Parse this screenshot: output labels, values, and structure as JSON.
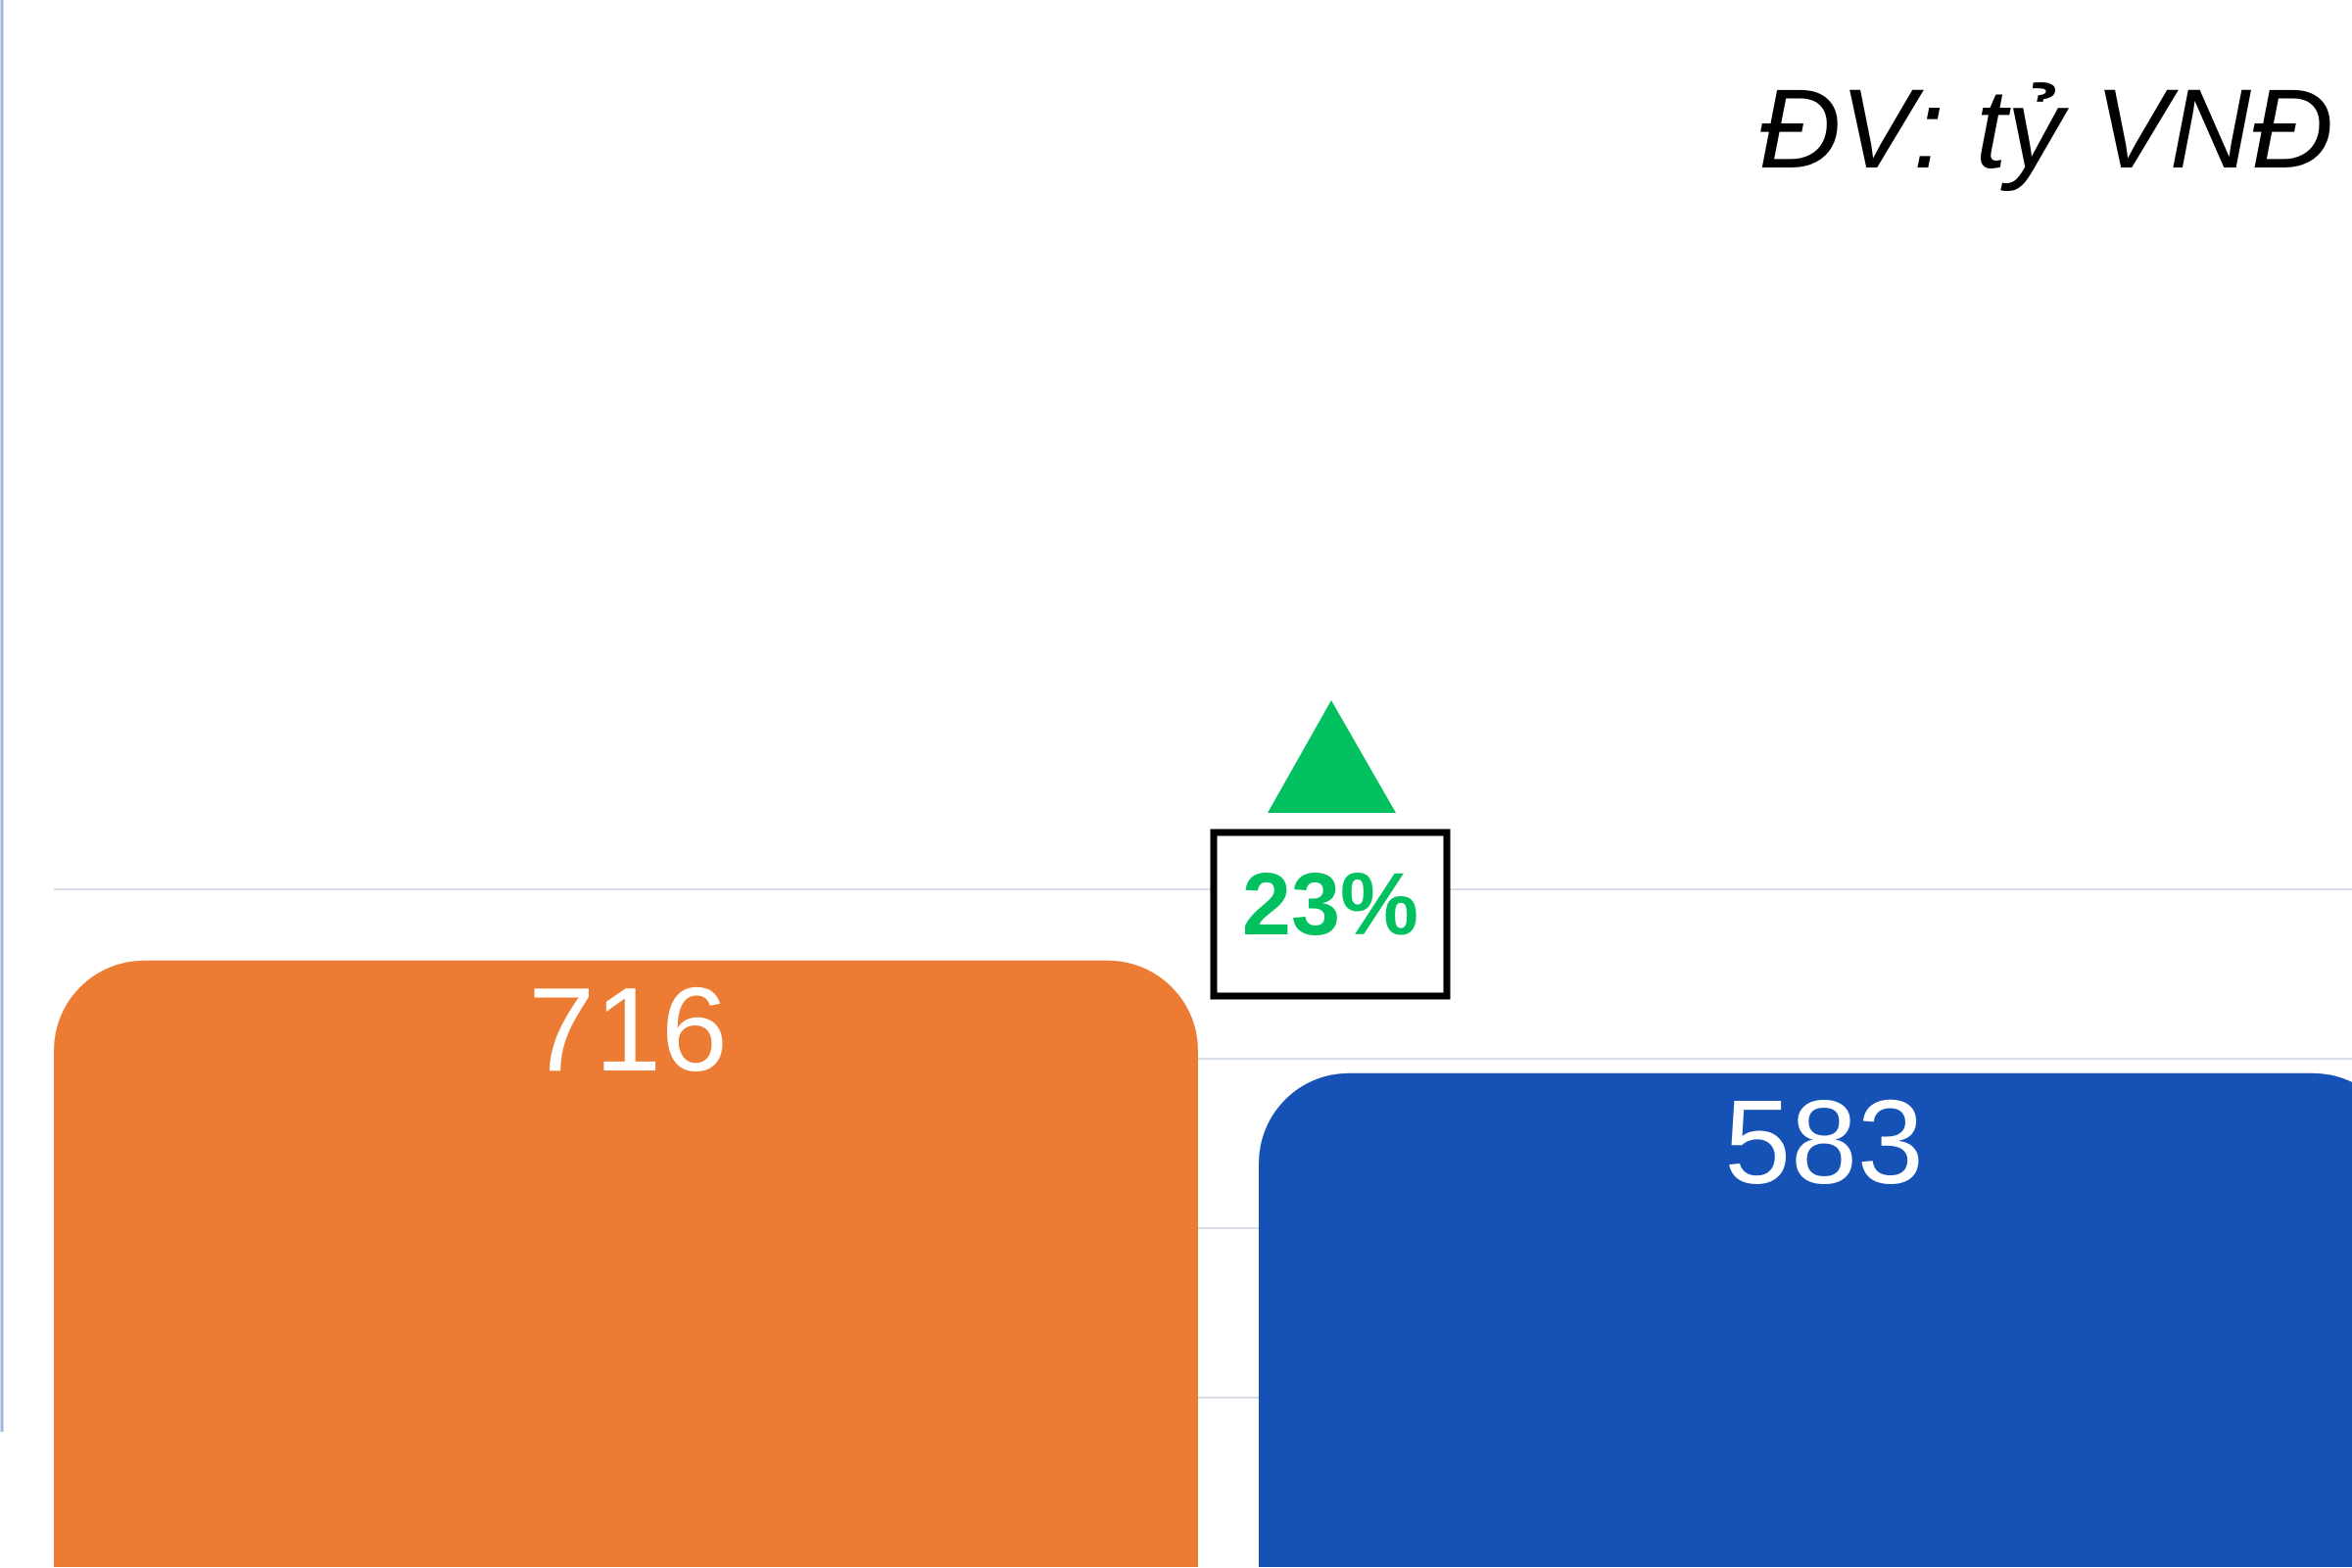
{
  "chart_data": {
    "type": "bar",
    "unit_label": "ĐV: tỷ VNĐ",
    "categories": [
      null,
      null
    ],
    "values": [
      716,
      583
    ],
    "colors": [
      "#ec7c33",
      "#1652b6"
    ],
    "change_label": "23%",
    "change_color": "#00c060",
    "ylim": [
      0,
      1850
    ],
    "yticks": [
      200,
      400,
      600,
      800
    ],
    "grid": true
  }
}
